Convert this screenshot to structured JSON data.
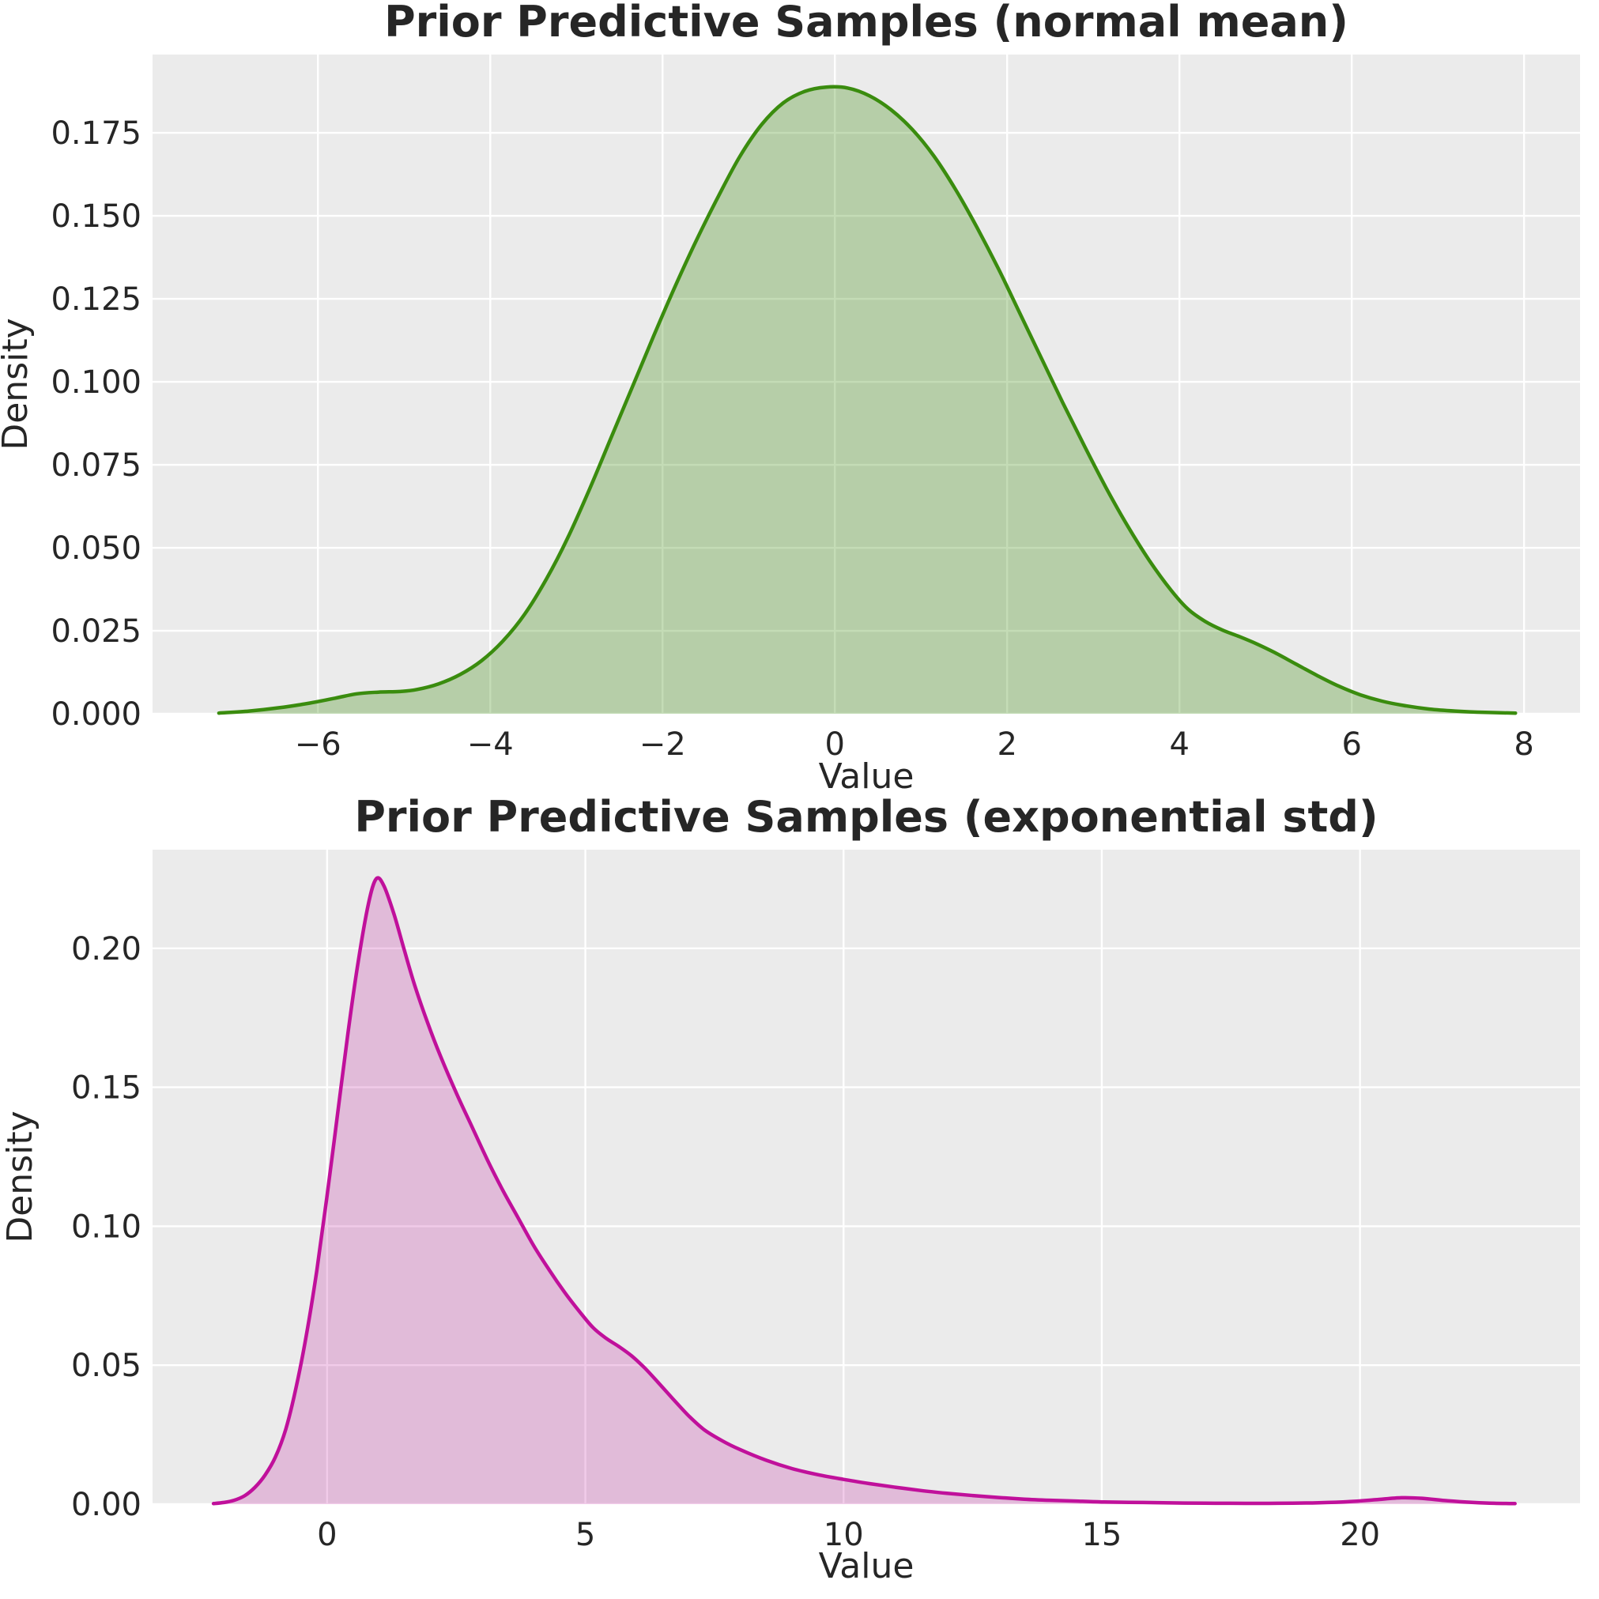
{
  "figure_background": "#ffffff",
  "style": {
    "axes_background": "#ebebeb",
    "grid_color": "#ffffff",
    "text_color": "#262626"
  },
  "chart_data": [
    {
      "type": "area",
      "kind": "kde-density",
      "title": "Prior Predictive Samples (normal mean)",
      "xlabel": "Value",
      "ylabel": "Density",
      "line_color": "#3a8c0e",
      "fill_color": "#3a8c0e",
      "fill_alpha": 0.3,
      "grid": "both",
      "legend": "none",
      "xlim": [
        -7.92,
        8.65
      ],
      "ylim": [
        0,
        0.1986
      ],
      "x_ticks": [
        {
          "v": -6,
          "label": "−6"
        },
        {
          "v": -4,
          "label": "−4"
        },
        {
          "v": -2,
          "label": "−2"
        },
        {
          "v": 0,
          "label": "0"
        },
        {
          "v": 2,
          "label": "2"
        },
        {
          "v": 4,
          "label": "4"
        },
        {
          "v": 6,
          "label": "6"
        },
        {
          "v": 8,
          "label": "8"
        }
      ],
      "y_ticks": [
        {
          "v": 0.0,
          "label": "0.000"
        },
        {
          "v": 0.025,
          "label": "0.025"
        },
        {
          "v": 0.05,
          "label": "0.050"
        },
        {
          "v": 0.075,
          "label": "0.075"
        },
        {
          "v": 0.1,
          "label": "0.100"
        },
        {
          "v": 0.125,
          "label": "0.125"
        },
        {
          "v": 0.15,
          "label": "0.150"
        },
        {
          "v": 0.175,
          "label": "0.175"
        }
      ],
      "peak": {
        "x": -0.1,
        "density": 0.189
      },
      "data_range": [
        -7.15,
        7.9
      ],
      "points": [
        [
          -7.15,
          0.0002
        ],
        [
          -6.8,
          0.0008
        ],
        [
          -6.45,
          0.0018
        ],
        [
          -6.1,
          0.0032
        ],
        [
          -5.8,
          0.0047
        ],
        [
          -5.55,
          0.006
        ],
        [
          -5.3,
          0.0065
        ],
        [
          -5.05,
          0.0067
        ],
        [
          -4.85,
          0.0073
        ],
        [
          -4.6,
          0.009
        ],
        [
          -4.35,
          0.0118
        ],
        [
          -4.1,
          0.016
        ],
        [
          -3.85,
          0.022
        ],
        [
          -3.6,
          0.03
        ],
        [
          -3.35,
          0.0405
        ],
        [
          -3.1,
          0.053
        ],
        [
          -2.85,
          0.0675
        ],
        [
          -2.6,
          0.083
        ],
        [
          -2.35,
          0.0985
        ],
        [
          -2.1,
          0.114
        ],
        [
          -1.85,
          0.129
        ],
        [
          -1.6,
          0.143
        ],
        [
          -1.35,
          0.156
        ],
        [
          -1.1,
          0.168
        ],
        [
          -0.85,
          0.1775
        ],
        [
          -0.6,
          0.184
        ],
        [
          -0.35,
          0.1875
        ],
        [
          -0.1,
          0.1888
        ],
        [
          0.15,
          0.1885
        ],
        [
          0.4,
          0.1862
        ],
        [
          0.65,
          0.182
        ],
        [
          0.9,
          0.176
        ],
        [
          1.15,
          0.168
        ],
        [
          1.4,
          0.158
        ],
        [
          1.65,
          0.1465
        ],
        [
          1.9,
          0.134
        ],
        [
          2.15,
          0.1205
        ],
        [
          2.4,
          0.107
        ],
        [
          2.65,
          0.0935
        ],
        [
          2.9,
          0.0805
        ],
        [
          3.15,
          0.068
        ],
        [
          3.4,
          0.0565
        ],
        [
          3.65,
          0.0462
        ],
        [
          3.9,
          0.0373
        ],
        [
          4.1,
          0.0315
        ],
        [
          4.3,
          0.0278
        ],
        [
          4.5,
          0.0252
        ],
        [
          4.7,
          0.0232
        ],
        [
          4.9,
          0.021
        ],
        [
          5.1,
          0.0185
        ],
        [
          5.35,
          0.015
        ],
        [
          5.6,
          0.0115
        ],
        [
          5.85,
          0.0083
        ],
        [
          6.1,
          0.0057
        ],
        [
          6.35,
          0.0038
        ],
        [
          6.6,
          0.0025
        ],
        [
          6.9,
          0.0014
        ],
        [
          7.2,
          0.0008
        ],
        [
          7.55,
          0.0004
        ],
        [
          7.9,
          0.0002
        ]
      ]
    },
    {
      "type": "area",
      "kind": "kde-density",
      "title": "Prior Predictive Samples (exponential std)",
      "xlabel": "Value",
      "ylabel": "Density",
      "line_color": "#c0109b",
      "fill_color": "#c0109b",
      "fill_alpha": 0.22,
      "grid": "both",
      "legend": "none",
      "xlim": [
        -3.38,
        24.26
      ],
      "ylim": [
        0,
        0.2355
      ],
      "x_ticks": [
        {
          "v": 0,
          "label": "0"
        },
        {
          "v": 5,
          "label": "5"
        },
        {
          "v": 10,
          "label": "10"
        },
        {
          "v": 15,
          "label": "15"
        },
        {
          "v": 20,
          "label": "20"
        }
      ],
      "y_ticks": [
        {
          "v": 0.0,
          "label": "0.00"
        },
        {
          "v": 0.05,
          "label": "0.05"
        },
        {
          "v": 0.1,
          "label": "0.10"
        },
        {
          "v": 0.15,
          "label": "0.15"
        },
        {
          "v": 0.2,
          "label": "0.20"
        }
      ],
      "peak": {
        "x": 0.95,
        "density": 0.225
      },
      "data_range": [
        -2.2,
        23.0
      ],
      "points": [
        [
          -2.2,
          0.0002
        ],
        [
          -2.0,
          0.0006
        ],
        [
          -1.8,
          0.0014
        ],
        [
          -1.6,
          0.003
        ],
        [
          -1.4,
          0.006
        ],
        [
          -1.2,
          0.0105
        ],
        [
          -1.0,
          0.017
        ],
        [
          -0.8,
          0.027
        ],
        [
          -0.6,
          0.042
        ],
        [
          -0.4,
          0.061
        ],
        [
          -0.2,
          0.084
        ],
        [
          0.0,
          0.111
        ],
        [
          0.2,
          0.14
        ],
        [
          0.4,
          0.169
        ],
        [
          0.6,
          0.195
        ],
        [
          0.8,
          0.216
        ],
        [
          0.95,
          0.225
        ],
        [
          1.1,
          0.2225
        ],
        [
          1.3,
          0.212
        ],
        [
          1.5,
          0.199
        ],
        [
          1.7,
          0.1865
        ],
        [
          1.95,
          0.173
        ],
        [
          2.2,
          0.161
        ],
        [
          2.5,
          0.148
        ],
        [
          2.8,
          0.136
        ],
        [
          3.1,
          0.124
        ],
        [
          3.4,
          0.113
        ],
        [
          3.7,
          0.103
        ],
        [
          4.0,
          0.093
        ],
        [
          4.3,
          0.0843
        ],
        [
          4.6,
          0.0762
        ],
        [
          4.9,
          0.069
        ],
        [
          5.15,
          0.0635
        ],
        [
          5.4,
          0.0597
        ],
        [
          5.65,
          0.0567
        ],
        [
          5.9,
          0.0533
        ],
        [
          6.15,
          0.049
        ],
        [
          6.4,
          0.044
        ],
        [
          6.7,
          0.0378
        ],
        [
          7.0,
          0.0318
        ],
        [
          7.3,
          0.0268
        ],
        [
          7.65,
          0.0228
        ],
        [
          8.0,
          0.0196
        ],
        [
          8.5,
          0.0158
        ],
        [
          9.0,
          0.0128
        ],
        [
          9.5,
          0.0106
        ],
        [
          10.0,
          0.0089
        ],
        [
          10.5,
          0.0074
        ],
        [
          11.0,
          0.0061
        ],
        [
          11.5,
          0.0049
        ],
        [
          12.0,
          0.0039
        ],
        [
          12.5,
          0.0031
        ],
        [
          13.0,
          0.0024
        ],
        [
          13.5,
          0.0018
        ],
        [
          14.0,
          0.0014
        ],
        [
          14.5,
          0.0011
        ],
        [
          15.0,
          0.0008
        ],
        [
          15.8,
          0.0006
        ],
        [
          16.6,
          0.0004
        ],
        [
          17.5,
          0.0003
        ],
        [
          18.4,
          0.0003
        ],
        [
          19.2,
          0.0005
        ],
        [
          19.8,
          0.0009
        ],
        [
          20.3,
          0.0016
        ],
        [
          20.8,
          0.0023
        ],
        [
          21.2,
          0.0021
        ],
        [
          21.7,
          0.0012
        ],
        [
          22.2,
          0.0006
        ],
        [
          22.6,
          0.0003
        ],
        [
          23.0,
          0.0002
        ]
      ]
    }
  ]
}
